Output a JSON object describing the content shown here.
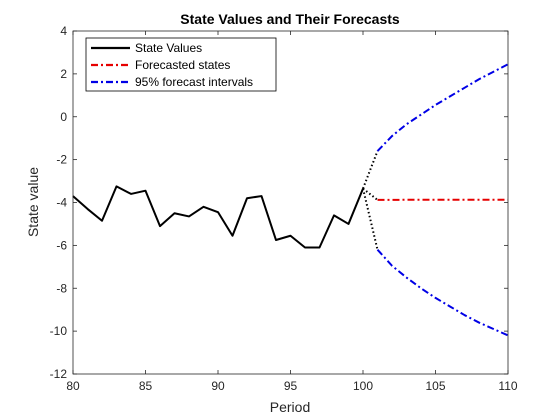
{
  "chart_data": {
    "type": "line",
    "title": "State Values and Their Forecasts",
    "xlabel": "Period",
    "ylabel": "State value",
    "xlim": [
      80,
      110
    ],
    "ylim": [
      -12,
      4
    ],
    "xticks": [
      80,
      85,
      90,
      95,
      100,
      105,
      110
    ],
    "yticks": [
      -12,
      -10,
      -8,
      -6,
      -4,
      -2,
      0,
      2,
      4
    ],
    "grid": false,
    "legend_position": "top-left",
    "series": [
      {
        "name": "State Values",
        "color": "#000000",
        "style": "solid",
        "x": [
          80,
          81,
          82,
          83,
          84,
          85,
          86,
          87,
          88,
          89,
          90,
          91,
          92,
          93,
          94,
          95,
          96,
          97,
          98,
          99,
          100
        ],
        "y": [
          -3.7,
          -4.3,
          -4.85,
          -3.25,
          -3.6,
          -3.45,
          -5.1,
          -4.5,
          -4.65,
          -4.2,
          -4.45,
          -5.55,
          -3.8,
          -3.7,
          -5.75,
          -5.55,
          -6.1,
          -6.1,
          -4.6,
          -5.0,
          -3.35
        ]
      },
      {
        "name": "Forecasted states",
        "color": "#e60000",
        "style": "dashdot",
        "x": [
          101,
          102,
          103,
          104,
          105,
          106,
          107,
          108,
          109,
          110
        ],
        "y": [
          -3.88,
          -3.88,
          -3.87,
          -3.87,
          -3.87,
          -3.87,
          -3.87,
          -3.87,
          -3.87,
          -3.87
        ]
      },
      {
        "name": "95% forecast intervals",
        "color": "#0000e6",
        "style": "dashdot",
        "upper": {
          "x": [
            101,
            102,
            103,
            104,
            105,
            106,
            107,
            108,
            109,
            110
          ],
          "y": [
            -1.6,
            -0.9,
            -0.35,
            0.1,
            0.55,
            0.95,
            1.35,
            1.75,
            2.1,
            2.45
          ]
        },
        "lower": {
          "x": [
            101,
            102,
            103,
            104,
            105,
            106,
            107,
            108,
            109,
            110
          ],
          "y": [
            -6.2,
            -6.95,
            -7.5,
            -8.0,
            -8.45,
            -8.85,
            -9.25,
            -9.6,
            -9.9,
            -10.2
          ]
        }
      }
    ],
    "connectors": {
      "color": "#000000",
      "style": "dotted",
      "segments": [
        {
          "x": [
            100,
            101
          ],
          "y": [
            -3.35,
            -3.88
          ]
        },
        {
          "x": [
            100,
            101
          ],
          "y": [
            -3.35,
            -1.6
          ]
        },
        {
          "x": [
            100,
            101
          ],
          "y": [
            -3.35,
            -6.2
          ]
        }
      ]
    }
  }
}
